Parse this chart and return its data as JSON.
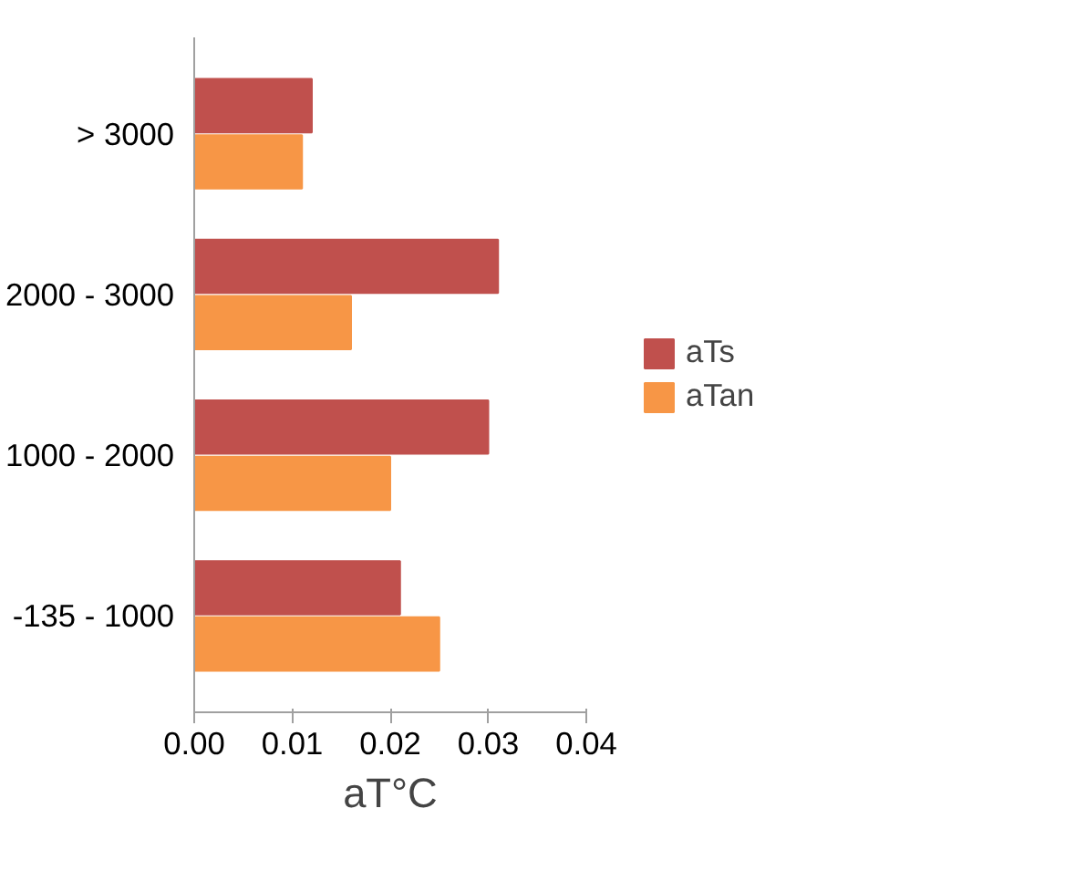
{
  "chart_data": {
    "type": "bar",
    "orientation": "horizontal",
    "categories": [
      "> 3000",
      "2000 - 3000",
      "1000 - 2000",
      "-135 - 1000"
    ],
    "series": [
      {
        "name": "aTs",
        "color": "#c0504d",
        "values": [
          0.012,
          0.031,
          0.03,
          0.021
        ]
      },
      {
        "name": "aTan",
        "color": "#f79646",
        "values": [
          0.011,
          0.016,
          0.02,
          0.025
        ]
      }
    ],
    "xlabel": "aT°C",
    "xlim": [
      0,
      0.04
    ],
    "xticks": [
      {
        "value": 0,
        "label": "0.00"
      },
      {
        "value": 0.01,
        "label": "0.01"
      },
      {
        "value": 0.02,
        "label": "0.02"
      },
      {
        "value": 0.03,
        "label": "0.03"
      },
      {
        "value": 0.04,
        "label": "0.04"
      }
    ],
    "legend": "right",
    "grid": false
  }
}
